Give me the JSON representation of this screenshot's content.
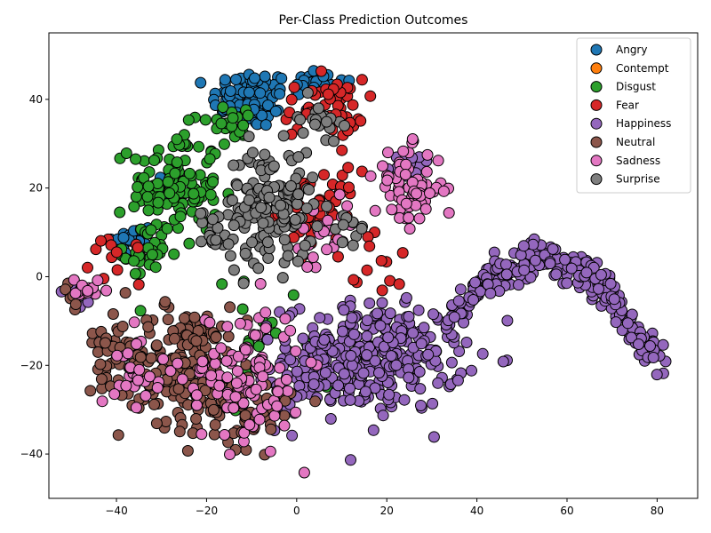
{
  "chart_data": {
    "type": "scatter",
    "title": "Per-Class Prediction Outcomes",
    "xlabel": "",
    "ylabel": "",
    "xlim": [
      -55,
      89
    ],
    "ylim": [
      -50,
      55
    ],
    "xticks": [
      -40,
      -20,
      0,
      20,
      40,
      60,
      80
    ],
    "yticks": [
      -40,
      -20,
      0,
      20,
      40
    ],
    "grid": false,
    "legend_position": "top-right",
    "series": [
      {
        "name": "Angry",
        "color": "#1f77b4",
        "clusters": [
          {
            "cx": -10,
            "cy": 40,
            "rx": 8,
            "ry": 6,
            "n": 90
          },
          {
            "cx": 4,
            "cy": 44,
            "rx": 6,
            "ry": 3,
            "n": 30
          },
          {
            "cx": -37,
            "cy": 8,
            "rx": 5,
            "ry": 4,
            "n": 22
          },
          {
            "cx": -28,
            "cy": 20,
            "rx": 5,
            "ry": 5,
            "n": 16
          }
        ]
      },
      {
        "name": "Contempt",
        "color": "#ff7f0e",
        "clusters": []
      },
      {
        "name": "Disgust",
        "color": "#2ca02c",
        "clusters": [
          {
            "cx": -27,
            "cy": 20,
            "rx": 9,
            "ry": 12,
            "n": 120
          },
          {
            "cx": -33,
            "cy": 5,
            "rx": 5,
            "ry": 5,
            "n": 25
          },
          {
            "cx": -14,
            "cy": 35,
            "rx": 5,
            "ry": 4,
            "n": 20
          },
          {
            "cx": -5,
            "cy": -15,
            "rx": 14,
            "ry": 14,
            "n": 20
          }
        ]
      },
      {
        "name": "Fear",
        "color": "#d62728",
        "clusters": [
          {
            "cx": 6,
            "cy": 38,
            "rx": 8,
            "ry": 6,
            "n": 55
          },
          {
            "cx": 5,
            "cy": 15,
            "rx": 8,
            "ry": 8,
            "n": 45
          },
          {
            "cx": -40,
            "cy": 4,
            "rx": 5,
            "ry": 5,
            "n": 12
          },
          {
            "cx": 18,
            "cy": 2,
            "rx": 10,
            "ry": 6,
            "n": 12
          }
        ]
      },
      {
        "name": "Happiness",
        "color": "#9467bd",
        "clusters": [
          {
            "cx": 17,
            "cy": -18,
            "rx": 18,
            "ry": 11,
            "n": 300
          },
          {
            "cx": 2,
            "cy": -25,
            "rx": 8,
            "ry": 8,
            "n": 40
          },
          {
            "cx": 25,
            "cy": 25,
            "rx": 4,
            "ry": 3,
            "n": 15
          },
          {
            "cx": -48,
            "cy": -5,
            "rx": 3,
            "ry": 3,
            "n": 8
          }
        ],
        "band": {
          "x0": 33,
          "x1": 82,
          "n": 260
        }
      },
      {
        "name": "Neutral",
        "color": "#8c564b",
        "clusters": [
          {
            "cx": -25,
            "cy": -20,
            "rx": 13,
            "ry": 12,
            "n": 200
          },
          {
            "cx": -10,
            "cy": -30,
            "rx": 8,
            "ry": 8,
            "n": 60
          },
          {
            "cx": -41,
            "cy": -15,
            "rx": 5,
            "ry": 8,
            "n": 30
          },
          {
            "cx": -49,
            "cy": -5,
            "rx": 3,
            "ry": 3,
            "n": 10
          }
        ]
      },
      {
        "name": "Sadness",
        "color": "#e377c2",
        "clusters": [
          {
            "cx": 25,
            "cy": 20,
            "rx": 7,
            "ry": 8,
            "n": 70
          },
          {
            "cx": -12,
            "cy": -22,
            "rx": 12,
            "ry": 14,
            "n": 110
          },
          {
            "cx": -35,
            "cy": -20,
            "rx": 5,
            "ry": 8,
            "n": 25
          },
          {
            "cx": -47,
            "cy": -3,
            "rx": 3,
            "ry": 3,
            "n": 12
          },
          {
            "cx": 7,
            "cy": 8,
            "rx": 8,
            "ry": 8,
            "n": 25
          }
        ]
      },
      {
        "name": "Surprise",
        "color": "#7f7f7f",
        "clusters": [
          {
            "cx": -6,
            "cy": 16,
            "rx": 9,
            "ry": 12,
            "n": 150
          },
          {
            "cx": 5,
            "cy": 36,
            "rx": 4,
            "ry": 4,
            "n": 18
          },
          {
            "cx": -18,
            "cy": 10,
            "rx": 4,
            "ry": 5,
            "n": 20
          },
          {
            "cx": 12,
            "cy": 10,
            "rx": 3,
            "ry": 4,
            "n": 10
          }
        ]
      }
    ]
  }
}
